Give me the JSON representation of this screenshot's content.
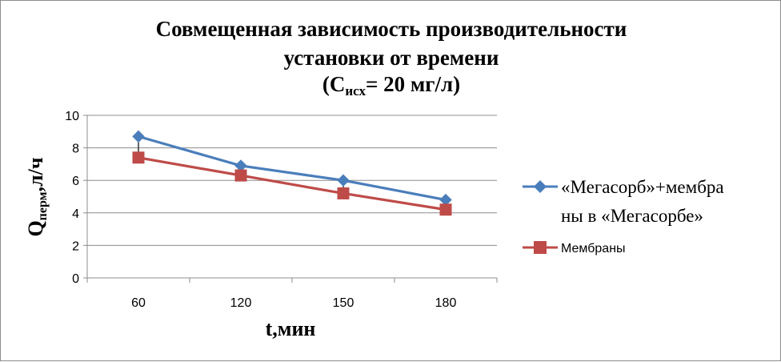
{
  "chart_data": {
    "type": "line",
    "title_line1": "Совмещенная зависимость производительности",
    "title_line2": "установки от времени",
    "title_line3_prefix": "(С",
    "title_line3_sub": "исх",
    "title_line3_suffix": "= 20 мг/л)",
    "xlabel": "t,мин",
    "ylabel_main": "Q",
    "ylabel_sub": "перм",
    "ylabel_suffix": ",л/ч",
    "categories": [
      "60",
      "120",
      "150",
      "180"
    ],
    "ylim": [
      0,
      10
    ],
    "yticks": [
      0,
      2,
      4,
      6,
      8,
      10
    ],
    "grid": true,
    "legend_position": "right",
    "series": [
      {
        "name_line1": "«Мегасорб»+мембра",
        "name_line2": "ны в «Мегасорбе»",
        "values": [
          8.7,
          6.9,
          6.0,
          4.8
        ],
        "color": "#4a7ebb",
        "marker": "diamond"
      },
      {
        "name_line1": "Мембраны",
        "values": [
          7.4,
          6.3,
          5.2,
          4.2
        ],
        "color": "#be4b48",
        "marker": "square"
      }
    ]
  }
}
